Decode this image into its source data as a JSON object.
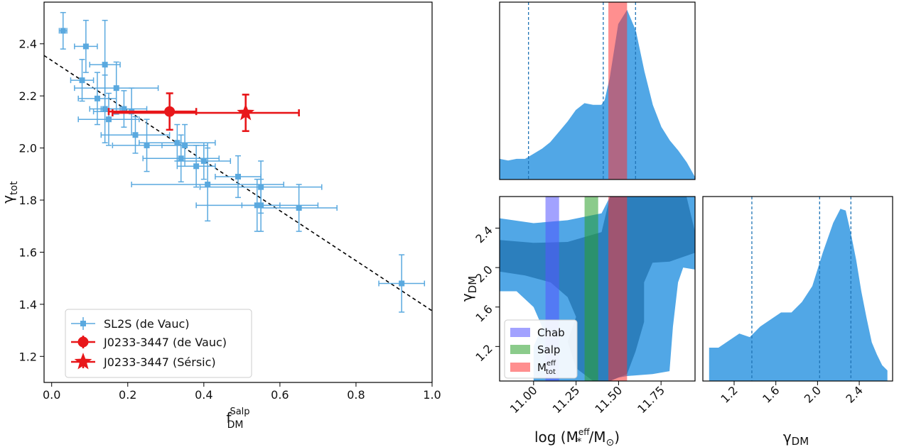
{
  "colors": {
    "sl2s": "#5aa9df",
    "j0233": "#e8171a",
    "fill_outer": "#51a7e6",
    "fill_inner": "#2c7fbd",
    "chab": "#5555ff",
    "salp": "#2ca02c",
    "mtot": "#ff3333",
    "dash": "#2074b6"
  },
  "chart_data": [
    {
      "id": "scatter",
      "type": "scatter",
      "xlabel": "f",
      "xlabel_sub": "DM",
      "xlabel_sup": "Salp",
      "ylabel": "γ",
      "ylabel_sub": "tot",
      "xlim": [
        -0.02,
        1.0
      ],
      "ylim": [
        1.1,
        2.56
      ],
      "xticks": [
        "0.0",
        "0.2",
        "0.4",
        "0.6",
        "0.8",
        "1.0"
      ],
      "xtick_values": [
        0.0,
        0.2,
        0.4,
        0.6,
        0.8,
        1.0
      ],
      "yticks": [
        "1.2",
        "1.4",
        "1.6",
        "1.8",
        "2.0",
        "2.2",
        "2.4"
      ],
      "ytick_values": [
        1.2,
        1.4,
        1.6,
        1.8,
        2.0,
        2.2,
        2.4
      ],
      "fit_line": {
        "x": [
          -0.02,
          1.0
        ],
        "y": [
          2.355,
          1.375
        ],
        "style": "dashed"
      },
      "series": [
        {
          "name": "SL2S (de Vauc)",
          "marker": "square",
          "points": [
            {
              "x": 0.03,
              "y": 2.45,
              "xerr": 0.01,
              "yerr": 0.07
            },
            {
              "x": 0.09,
              "y": 2.39,
              "xerr": 0.03,
              "yerr": 0.1
            },
            {
              "x": 0.14,
              "y": 2.32,
              "xerr": 0.04,
              "yerr": 0.17
            },
            {
              "x": 0.08,
              "y": 2.26,
              "xerr": 0.03,
              "yerr": 0.08
            },
            {
              "x": 0.17,
              "y": 2.23,
              "xerr": 0.11,
              "yerr": 0.1
            },
            {
              "x": 0.12,
              "y": 2.19,
              "xerr": 0.05,
              "yerr": 0.1
            },
            {
              "x": 0.14,
              "y": 2.15,
              "xerr": 0.04,
              "yerr": 0.13
            },
            {
              "x": 0.19,
              "y": 2.15,
              "xerr": 0.06,
              "yerr": 0.07
            },
            {
              "x": 0.15,
              "y": 2.11,
              "xerr": 0.08,
              "yerr": 0.1
            },
            {
              "x": 0.21,
              "y": 2.14,
              "xerr": 0.1,
              "yerr": 0.09
            },
            {
              "x": 0.22,
              "y": 2.05,
              "xerr": 0.09,
              "yerr": 0.07
            },
            {
              "x": 0.25,
              "y": 2.01,
              "xerr": 0.09,
              "yerr": 0.1
            },
            {
              "x": 0.33,
              "y": 2.02,
              "xerr": 0.1,
              "yerr": 0.07
            },
            {
              "x": 0.35,
              "y": 2.01,
              "xerr": 0.06,
              "yerr": 0.08
            },
            {
              "x": 0.34,
              "y": 1.96,
              "xerr": 0.1,
              "yerr": 0.09
            },
            {
              "x": 0.38,
              "y": 1.93,
              "xerr": 0.05,
              "yerr": 0.08
            },
            {
              "x": 0.4,
              "y": 1.95,
              "xerr": 0.07,
              "yerr": 0.07
            },
            {
              "x": 0.41,
              "y": 1.86,
              "xerr": 0.2,
              "yerr": 0.14
            },
            {
              "x": 0.49,
              "y": 1.89,
              "xerr": 0.06,
              "yerr": 0.08
            },
            {
              "x": 0.55,
              "y": 1.85,
              "xerr": 0.16,
              "yerr": 0.1
            },
            {
              "x": 0.54,
              "y": 1.78,
              "xerr": 0.16,
              "yerr": 0.1
            },
            {
              "x": 0.55,
              "y": 1.78,
              "xerr": 0.05,
              "yerr": 0.1
            },
            {
              "x": 0.65,
              "y": 1.77,
              "xerr": 0.1,
              "yerr": 0.09
            },
            {
              "x": 0.92,
              "y": 1.48,
              "xerr": 0.06,
              "yerr": 0.11
            }
          ]
        },
        {
          "name": "J0233-3447 (de Vauc)",
          "marker": "circle",
          "points": [
            {
              "x": 0.31,
              "y": 2.14,
              "xerr_low": 0.16,
              "xerr_high": 0.07,
              "yerr": 0.07
            }
          ]
        },
        {
          "name": "J0233-3447 (Sérsic)",
          "marker": "star",
          "points": [
            {
              "x": 0.51,
              "y": 2.135,
              "xerr_low": 0.35,
              "xerr_high": 0.14,
              "yerr": 0.07
            }
          ]
        }
      ],
      "legend": {
        "placement": "lower-left",
        "entries": [
          "SL2S (de Vauc)",
          "J0233-3447 (de Vauc)",
          "J0233-3447 (Sérsic)"
        ]
      }
    },
    {
      "id": "hist-mstar",
      "type": "area",
      "xlim": [
        10.8,
        11.95
      ],
      "ylim": [
        0,
        1.05
      ],
      "x": [
        10.8,
        10.85,
        10.9,
        10.95,
        11.0,
        11.05,
        11.1,
        11.15,
        11.2,
        11.25,
        11.3,
        11.35,
        11.4,
        11.42,
        11.45,
        11.5,
        11.55,
        11.6,
        11.65,
        11.7,
        11.75,
        11.8,
        11.85,
        11.9,
        11.95
      ],
      "y": [
        0.12,
        0.11,
        0.12,
        0.12,
        0.15,
        0.18,
        0.22,
        0.28,
        0.34,
        0.41,
        0.45,
        0.44,
        0.44,
        0.47,
        0.6,
        0.92,
        1.0,
        0.88,
        0.64,
        0.44,
        0.31,
        0.23,
        0.17,
        0.1,
        0.01
      ],
      "vlines": [
        10.97,
        11.41,
        11.6
      ],
      "bands": [
        {
          "name": "Mtot",
          "from": 11.44,
          "to": 11.55
        }
      ]
    },
    {
      "id": "corner-2d",
      "type": "heatmap",
      "xlim": [
        10.8,
        11.95
      ],
      "ylim": [
        0.85,
        2.72
      ],
      "xticks": [
        "11.00",
        "11.25",
        "11.50",
        "11.75"
      ],
      "xtick_values": [
        11.0,
        11.25,
        11.5,
        11.75
      ],
      "yticks": [
        "1.2",
        "1.6",
        "2.0",
        "2.4"
      ],
      "ytick_values": [
        1.2,
        1.6,
        2.0,
        2.4
      ],
      "xlabel": "log (M",
      "xlabel_sub": "*",
      "xlabel_sup": "eff",
      "xlabel_tail": "/M",
      "xlabel_sun": "⊙",
      "ylabel": "γ",
      "ylabel_sub": "DM",
      "bands": [
        {
          "name": "Chab",
          "from": 11.07,
          "to": 11.15
        },
        {
          "name": "Salp",
          "from": 11.3,
          "to": 11.38
        },
        {
          "name": "Mtot",
          "from": 11.44,
          "to": 11.55
        }
      ],
      "legend": {
        "placement": "lower-left",
        "entries": [
          "Chab",
          "Salp",
          "M"
        ],
        "mtot_sup": "eff",
        "mtot_sub": "tot"
      }
    },
    {
      "id": "hist-gamma",
      "type": "area",
      "xlim": [
        0.9,
        2.72
      ],
      "ylim": [
        0,
        1.05
      ],
      "xticks": [
        "1.2",
        "1.6",
        "2.0",
        "2.4"
      ],
      "xtick_values": [
        1.2,
        1.6,
        2.0,
        2.4
      ],
      "xlabel": "γ",
      "xlabel_sub": "DM",
      "x": [
        0.96,
        1.05,
        1.15,
        1.25,
        1.35,
        1.45,
        1.55,
        1.65,
        1.75,
        1.85,
        1.95,
        2.05,
        2.15,
        2.22,
        2.27,
        2.32,
        2.37,
        2.42,
        2.47,
        2.52,
        2.57,
        2.62,
        2.67
      ],
      "y": [
        0.19,
        0.19,
        0.23,
        0.27,
        0.25,
        0.31,
        0.35,
        0.39,
        0.39,
        0.45,
        0.54,
        0.73,
        0.9,
        0.98,
        0.97,
        0.84,
        0.69,
        0.51,
        0.36,
        0.22,
        0.15,
        0.09,
        0.06
      ],
      "vlines": [
        1.37,
        2.02,
        2.32
      ]
    }
  ]
}
